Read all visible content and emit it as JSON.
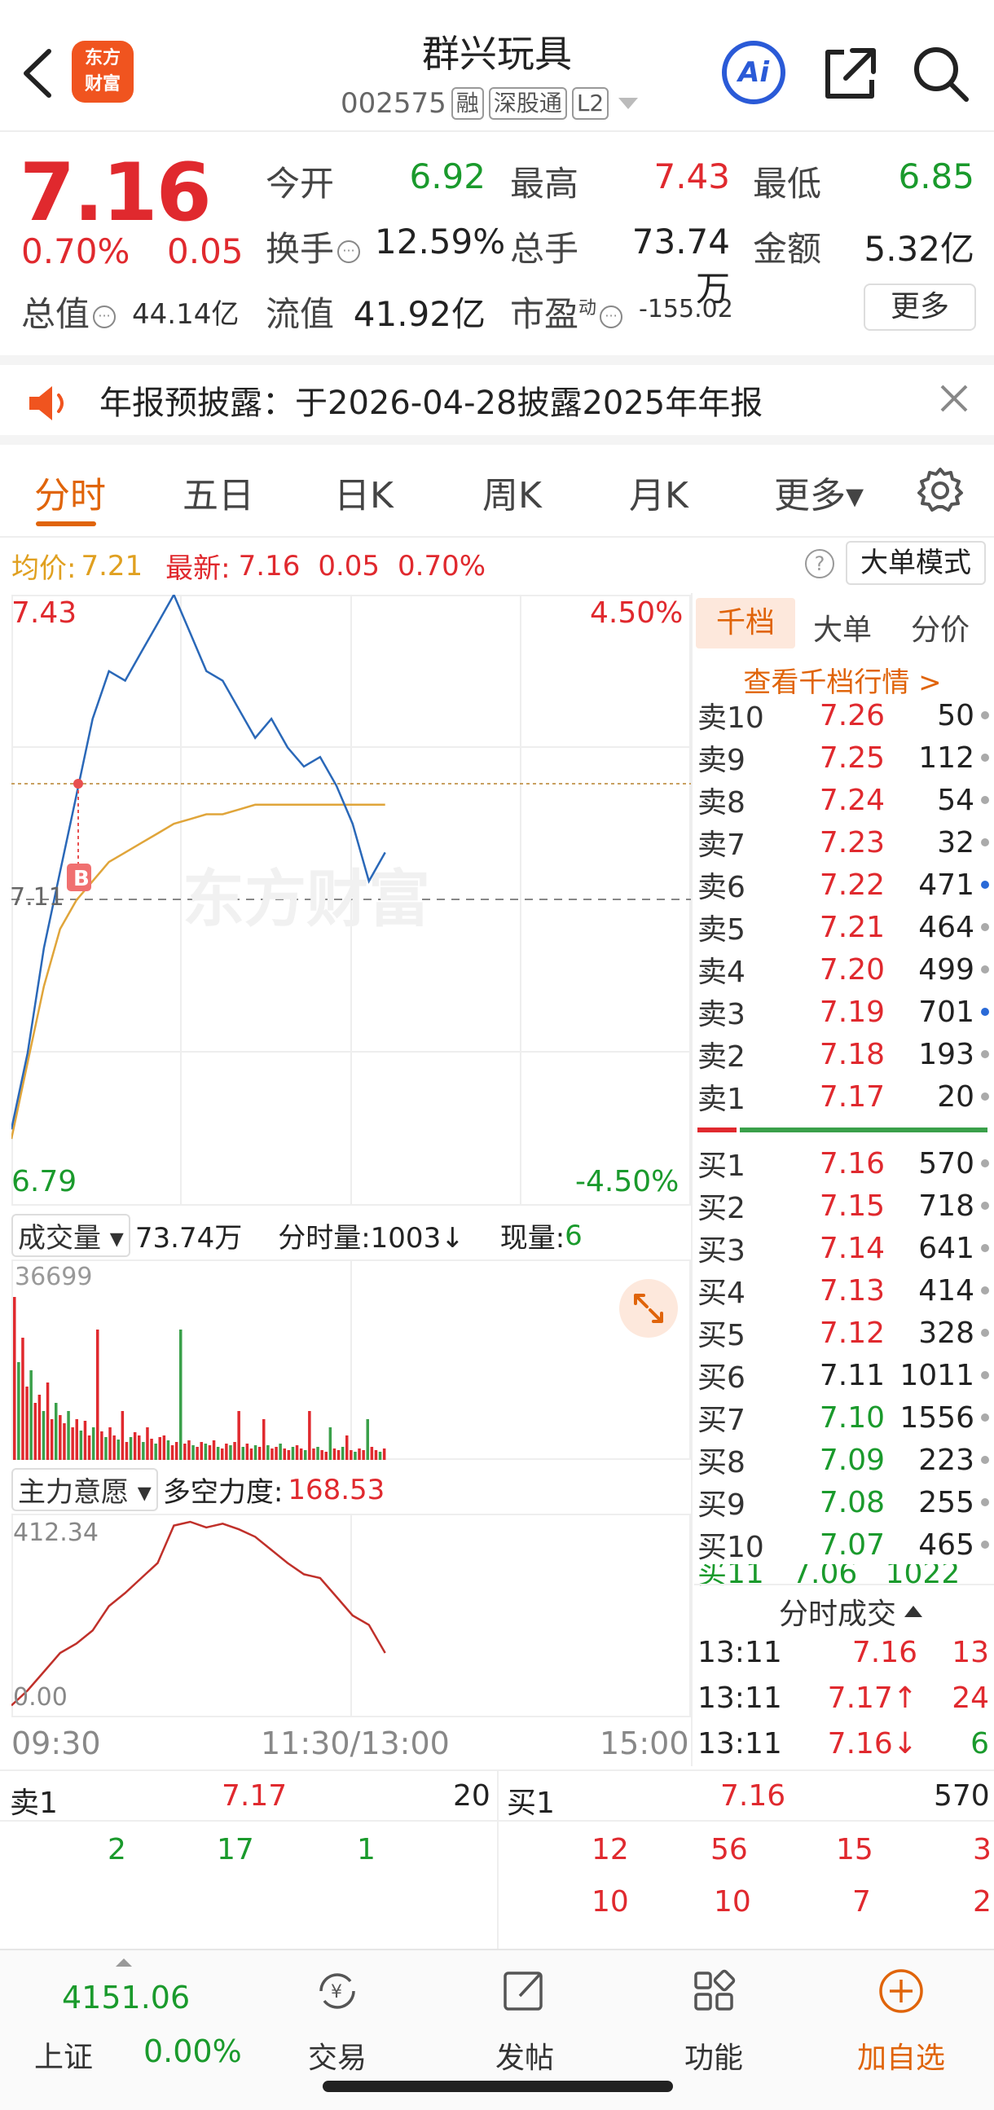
{
  "header": {
    "logo_line1": "东方",
    "logo_line2": "财富",
    "stock_name": "群兴玩具",
    "stock_code": "002575",
    "tags": [
      "融",
      "深股通",
      "L2"
    ],
    "ai_label": "Ai"
  },
  "quote": {
    "price": "7.16",
    "change_pct": "0.70%",
    "change_abs": "0.05",
    "open_label": "今开",
    "open": "6.92",
    "high_label": "最高",
    "high": "7.43",
    "low_label": "最低",
    "low": "6.85",
    "turnover_label": "换手",
    "turnover": "12.59%",
    "volume_label": "总手",
    "volume": "73.74万",
    "amount_label": "金额",
    "amount": "5.32亿",
    "mktcap_label": "总值",
    "mktcap": "44.14亿",
    "float_label": "流值",
    "float_cap": "41.92亿",
    "pe_label": "市盈",
    "pe_sup": "动",
    "pe": "-155.02",
    "more_label": "更多"
  },
  "notice": {
    "text": "年报预披露：于2026-04-28披露2025年年报"
  },
  "tabs": [
    {
      "label": "分时",
      "active": true
    },
    {
      "label": "五日"
    },
    {
      "label": "日K"
    },
    {
      "label": "周K"
    },
    {
      "label": "月K"
    },
    {
      "label": "更多▾"
    }
  ],
  "avg_bar": {
    "avg_label": "均价:",
    "avg_value": "7.21",
    "latest_label": "最新:",
    "latest_value": "7.16",
    "chg": "0.05",
    "chg_pct": "0.70%",
    "mode_label": "大单模式"
  },
  "chart": {
    "y_top": "7.43",
    "y_bottom": "6.79",
    "pct_top": "4.50%",
    "pct_bottom": "-4.50%",
    "prev_close": "7.11",
    "watermark": "东方财富",
    "buy_marker": "B",
    "volume_label": "成交量",
    "volume_total": "73.74万",
    "tick_vol_label": "分时量:1003↓",
    "now_vol_label": "现量:",
    "now_vol": "6",
    "volume_max": "36699",
    "indicator_label": "主力意愿",
    "indicator_name": "多空力度:",
    "indicator_value": "168.53",
    "ind_max": "412.34",
    "ind_min": "0.00",
    "time_labels": [
      "09:30",
      "11:30/13:00",
      "15:00"
    ]
  },
  "chart_data": {
    "type": "line",
    "x_range": [
      "09:30",
      "15:00"
    ],
    "ylim": [
      6.79,
      7.43
    ],
    "series": [
      {
        "values": [
          6.87,
          6.95,
          7.06,
          7.14,
          7.22,
          7.3,
          7.35,
          7.34,
          7.37,
          7.4,
          7.43,
          7.39,
          7.35,
          7.34,
          7.31,
          7.28,
          7.3,
          7.27,
          7.25,
          7.26,
          7.23,
          7.19,
          7.13,
          7.16
        ]
      },
      {
        "values": [
          6.86,
          6.94,
          7.02,
          7.08,
          7.11,
          7.13,
          7.15,
          7.16,
          7.17,
          7.18,
          7.19,
          7.195,
          7.2,
          7.2,
          7.205,
          7.21,
          7.21,
          7.21,
          7.21,
          7.21,
          7.21,
          7.21,
          7.21,
          7.21
        ]
      }
    ]
  },
  "right_panel": {
    "tabs": [
      "千档",
      "大单",
      "分价"
    ],
    "depth_link": "查看千档行情 >",
    "asks": [
      {
        "label": "卖10",
        "price": "7.26",
        "vol": "50",
        "dot": "grey"
      },
      {
        "label": "卖9",
        "price": "7.25",
        "vol": "112",
        "dot": "grey"
      },
      {
        "label": "卖8",
        "price": "7.24",
        "vol": "54",
        "dot": "grey"
      },
      {
        "label": "卖7",
        "price": "7.23",
        "vol": "32",
        "dot": "grey"
      },
      {
        "label": "卖6",
        "price": "7.22",
        "vol": "471",
        "dot": "blue"
      },
      {
        "label": "卖5",
        "price": "7.21",
        "vol": "464",
        "dot": "grey"
      },
      {
        "label": "卖4",
        "price": "7.20",
        "vol": "499",
        "dot": "grey"
      },
      {
        "label": "卖3",
        "price": "7.19",
        "vol": "701",
        "dot": "blue"
      },
      {
        "label": "卖2",
        "price": "7.18",
        "vol": "193",
        "dot": "grey"
      },
      {
        "label": "卖1",
        "price": "7.17",
        "vol": "20",
        "dot": "grey"
      }
    ],
    "bids": [
      {
        "label": "买1",
        "price": "7.16",
        "vol": "570",
        "dot": "grey",
        "color": "red"
      },
      {
        "label": "买2",
        "price": "7.15",
        "vol": "718",
        "dot": "grey",
        "color": "red"
      },
      {
        "label": "买3",
        "price": "7.14",
        "vol": "641",
        "dot": "grey",
        "color": "red"
      },
      {
        "label": "买4",
        "price": "7.13",
        "vol": "414",
        "dot": "grey",
        "color": "red"
      },
      {
        "label": "买5",
        "price": "7.12",
        "vol": "328",
        "dot": "grey",
        "color": "red"
      },
      {
        "label": "买6",
        "price": "7.11",
        "vol": "1011",
        "dot": "grey",
        "color": "black"
      },
      {
        "label": "买7",
        "price": "7.10",
        "vol": "1556",
        "dot": "grey",
        "color": "green"
      },
      {
        "label": "买8",
        "price": "7.09",
        "vol": "223",
        "dot": "grey",
        "color": "green"
      },
      {
        "label": "买9",
        "price": "7.08",
        "vol": "255",
        "dot": "grey",
        "color": "green"
      },
      {
        "label": "买10",
        "price": "7.07",
        "vol": "465",
        "dot": "grey",
        "color": "green"
      }
    ],
    "ticks_title": "分时成交",
    "ticks": [
      {
        "time": "13:11",
        "price": "7.16",
        "vol": "13",
        "arrow": ""
      },
      {
        "time": "13:11",
        "price": "7.17↑",
        "vol": "24",
        "arrow": "up"
      },
      {
        "time": "13:11",
        "price": "7.16↓",
        "vol": "6",
        "arrow": "down"
      }
    ]
  },
  "queue": {
    "sell_label": "卖1",
    "sell_price": "7.17",
    "sell_vol": "20",
    "buy_label": "买1",
    "buy_price": "7.16",
    "buy_vol": "570",
    "sell_orders": [
      "2",
      "17",
      "1"
    ],
    "buy_orders_row1": [
      "12",
      "56",
      "15",
      "3"
    ],
    "buy_orders_row2": [
      "10",
      "10",
      "7",
      "2"
    ]
  },
  "footer": {
    "index_value": "4151.06",
    "index_name": "上证",
    "index_change": "0.00%",
    "items": [
      {
        "label": "交易",
        "icon": "yuan-exchange-icon"
      },
      {
        "label": "发帖",
        "icon": "edit-post-icon"
      },
      {
        "label": "功能",
        "icon": "grid-apps-icon"
      },
      {
        "label": "加自选",
        "icon": "plus-circle-icon"
      }
    ]
  }
}
